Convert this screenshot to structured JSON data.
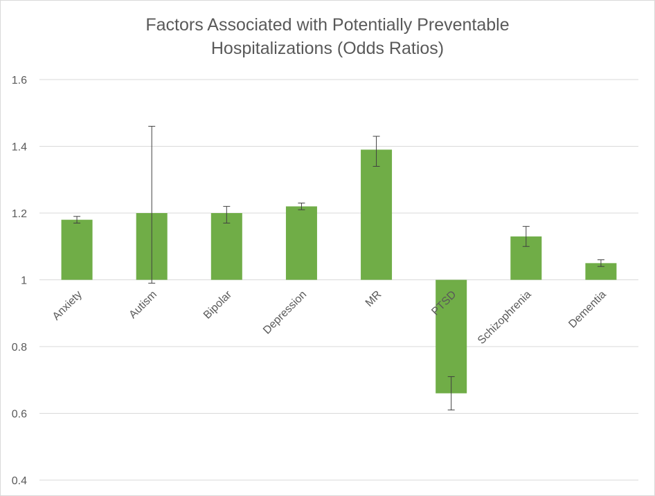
{
  "chart_data": {
    "type": "bar",
    "title_lines": [
      "Factors Associated with Potentially Preventable",
      "Hospitalizations (Odds Ratios)"
    ],
    "xlabel": "",
    "ylabel": "",
    "categories": [
      "Anxiety",
      "Autism",
      "Bipolar",
      "Depression",
      "MR",
      "PTSD",
      "Schizophrenia",
      "Dementia"
    ],
    "baseline": 1,
    "series": [
      {
        "values": [
          1.18,
          1.2,
          1.2,
          1.22,
          1.39,
          0.66,
          1.13,
          1.05
        ],
        "error_low": [
          1.17,
          0.99,
          1.17,
          1.21,
          1.34,
          0.61,
          1.1,
          1.04
        ],
        "error_high": [
          1.19,
          1.46,
          1.22,
          1.23,
          1.43,
          0.71,
          1.16,
          1.06
        ],
        "color": "#70ad47"
      }
    ],
    "ylim": [
      0.4,
      1.6
    ],
    "yticks": [
      1.6,
      1.4,
      1.2,
      1,
      0.8,
      0.6,
      0.4
    ],
    "ytick_labels": [
      "1.6",
      "1.4",
      "1.2",
      "1",
      "0.8",
      "0.6",
      "0.4"
    ],
    "grid": true,
    "legend": "none",
    "gridline_color": "#d9d9d9",
    "error_bar_color": "#404040"
  }
}
